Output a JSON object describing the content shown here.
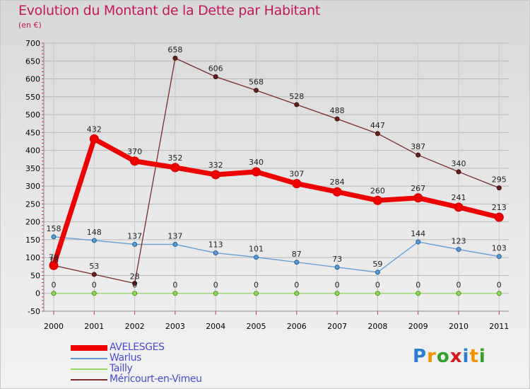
{
  "page": {
    "title": "Evolution du Montant de la Dette par Habitant",
    "unit": "(en €)",
    "logo": "Proxiti"
  },
  "chart_data": {
    "type": "line",
    "title": "Evolution du Montant de la Dette par Habitant",
    "subtitle": "(en €)",
    "x": [
      "2000",
      "2001",
      "2002",
      "2003",
      "2004",
      "2005",
      "2006",
      "2007",
      "2008",
      "2009",
      "2010",
      "2011"
    ],
    "ylim": [
      -50,
      700
    ],
    "yticks": [
      -50,
      0,
      50,
      100,
      150,
      200,
      250,
      300,
      350,
      400,
      450,
      500,
      550,
      600,
      650,
      700
    ],
    "grid": true,
    "legend_position": "bottom-left",
    "series": [
      {
        "name": "AVELESGES",
        "color": "#ee0000",
        "values": [
          78,
          432,
          370,
          352,
          332,
          340,
          307,
          284,
          260,
          267,
          241,
          213
        ]
      },
      {
        "name": "Warlus",
        "color": "#5b9bd5",
        "values": [
          158,
          148,
          137,
          137,
          113,
          101,
          87,
          73,
          59,
          144,
          123,
          103
        ]
      },
      {
        "name": "Tailly",
        "color": "#90d860",
        "values": [
          0,
          0,
          0,
          0,
          0,
          0,
          0,
          0,
          0,
          0,
          0,
          0
        ]
      },
      {
        "name": "Méricourt-en-Vimeu",
        "color": "#7a2b2b",
        "values": [
          78,
          53,
          28,
          658,
          606,
          568,
          528,
          488,
          447,
          387,
          340,
          295
        ]
      }
    ]
  }
}
